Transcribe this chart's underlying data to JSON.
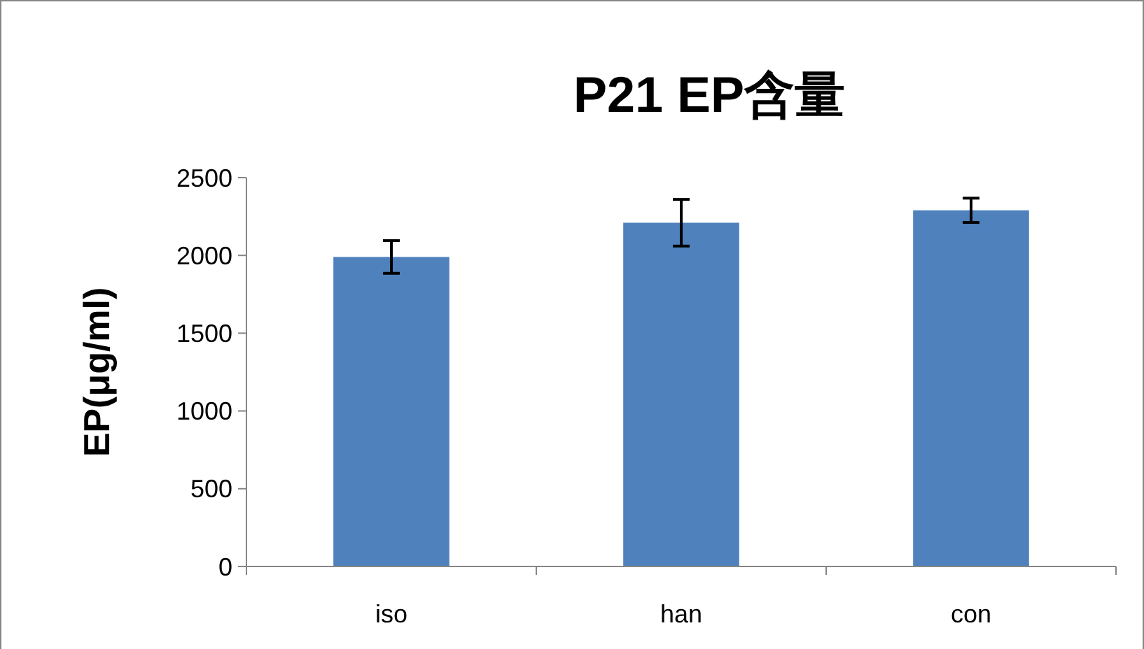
{
  "chart_data": {
    "type": "bar",
    "title": "P21 EP含量",
    "ylabel": "EP(μg/ml)",
    "categories": [
      "iso",
      "han",
      "con"
    ],
    "values": [
      1990,
      2210,
      2290
    ],
    "errors": [
      105,
      150,
      78
    ],
    "color": "#4f81bd",
    "ylim": [
      0,
      2500
    ],
    "yticks": [
      0,
      500,
      1000,
      1500,
      2000,
      2500
    ],
    "grid": false
  }
}
